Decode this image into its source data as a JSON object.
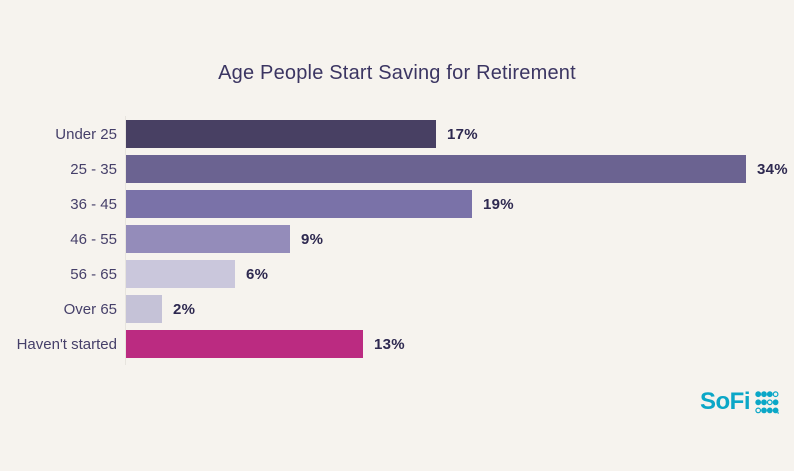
{
  "page": {
    "background_color": "#f6f3ee"
  },
  "chart_data": {
    "type": "bar",
    "orientation": "horizontal",
    "title": "Age People Start Saving for Retirement",
    "categories": [
      "Under 25",
      "25 - 35",
      "36 - 45",
      "46 - 55",
      "56 - 65",
      "Over 65",
      "Haven't started"
    ],
    "values": [
      17,
      34,
      19,
      9,
      6,
      2,
      13
    ],
    "value_labels": [
      "17%",
      "34%",
      "19%",
      "9%",
      "6%",
      "2%",
      "13%"
    ],
    "bar_colors": [
      "#484063",
      "#6b6391",
      "#7a72a8",
      "#948cba",
      "#cac7dc",
      "#c5c2d7",
      "#bb2b81"
    ],
    "xlim": [
      0,
      34
    ],
    "grid": false,
    "legend": false,
    "value_label_position": "right-of-bar",
    "title_color": "#3b3562",
    "category_label_color": "#453f69",
    "value_label_color": "#2e2950",
    "axis_line_color": "#e7e4de"
  },
  "branding": {
    "logo_text": "SoFi",
    "logo_color": "#0ba7c7",
    "logo_mark_icon": "sofi-dots-icon",
    "logo_mark_pattern": [
      [
        1,
        1,
        1,
        0
      ],
      [
        1,
        1,
        0,
        1
      ],
      [
        0,
        1,
        1,
        1
      ]
    ]
  }
}
